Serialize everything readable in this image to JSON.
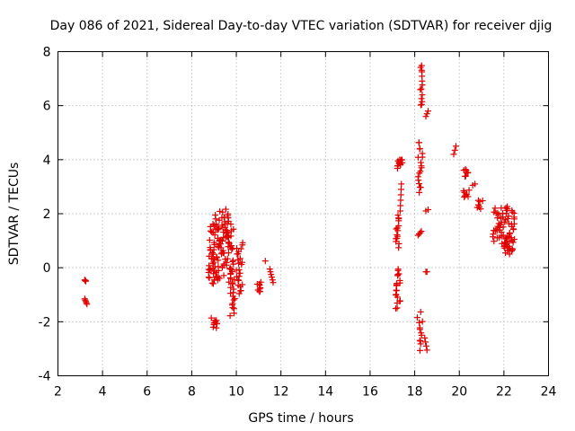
{
  "chart_data": {
    "type": "scatter",
    "title": "Day 086 of 2021, Sidereal Day-to-day VTEC variation (SDTVAR) for receiver djig",
    "xlabel": "GPS time / hours",
    "ylabel": "SDTVAR / TECUs",
    "xlim": [
      2,
      24
    ],
    "ylim": [
      -4,
      8
    ],
    "xticks": [
      "2",
      "4",
      "6",
      "8",
      "10",
      "12",
      "14",
      "16",
      "18",
      "20",
      "22",
      "24"
    ],
    "yticks": [
      "-4",
      "-2",
      "0",
      "2",
      "4",
      "6",
      "8"
    ],
    "grid": true,
    "marker": "plus",
    "color": "#e00000",
    "clusters": [
      {
        "x": [
          3.2,
          3.25
        ],
        "y": [
          -0.45,
          -0.5
        ],
        "n": 4
      },
      {
        "x": [
          3.2,
          3.3
        ],
        "y": [
          -1.15,
          -1.35
        ],
        "n": 5
      },
      {
        "x": [
          8.8,
          9.2
        ],
        "y": [
          -1.85,
          -2.2
        ],
        "n": 10
      },
      {
        "x": [
          8.75,
          9.8
        ],
        "y": [
          -0.55,
          1.6
        ],
        "n": 90
      },
      {
        "x": [
          9.0,
          9.9
        ],
        "y": [
          0.6,
          2.15
        ],
        "n": 40
      },
      {
        "x": [
          9.7,
          9.95
        ],
        "y": [
          -1.75,
          0.3
        ],
        "n": 25
      },
      {
        "x": [
          10.0,
          10.3
        ],
        "y": [
          -0.95,
          0.9
        ],
        "n": 25
      },
      {
        "x": [
          10.85,
          11.15
        ],
        "y": [
          -0.55,
          -0.95
        ],
        "n": 10
      },
      {
        "x": [
          11.3,
          11.35
        ],
        "y": [
          0.25,
          0.25
        ],
        "n": 1
      },
      {
        "x": [
          11.5,
          11.65
        ],
        "y": [
          -0.05,
          -0.55
        ],
        "n": 6
      },
      {
        "x": [
          17.15,
          17.3
        ],
        "y": [
          0.8,
          1.9
        ],
        "n": 15
      },
      {
        "x": [
          17.15,
          17.35
        ],
        "y": [
          -0.05,
          -1.5
        ],
        "n": 20
      },
      {
        "x": [
          17.2,
          17.45
        ],
        "y": [
          3.75,
          4.0
        ],
        "n": 12
      },
      {
        "x": [
          17.35,
          17.4
        ],
        "y": [
          2.1,
          3.1
        ],
        "n": 6
      },
      {
        "x": [
          18.1,
          18.35
        ],
        "y": [
          -3.0,
          -1.7
        ],
        "n": 12
      },
      {
        "x": [
          18.15,
          18.3
        ],
        "y": [
          1.2,
          1.35
        ],
        "n": 4
      },
      {
        "x": [
          18.15,
          18.35
        ],
        "y": [
          2.8,
          4.7
        ],
        "n": 18
      },
      {
        "x": [
          18.25,
          18.35
        ],
        "y": [
          5.95,
          7.55
        ],
        "n": 14
      },
      {
        "x": [
          18.5,
          18.55
        ],
        "y": [
          -0.15,
          -0.15
        ],
        "n": 2
      },
      {
        "x": [
          18.5,
          18.6
        ],
        "y": [
          2.1,
          2.15
        ],
        "n": 2
      },
      {
        "x": [
          18.5,
          18.6
        ],
        "y": [
          5.6,
          5.8
        ],
        "n": 3
      },
      {
        "x": [
          18.45,
          18.55
        ],
        "y": [
          -2.6,
          -3.05
        ],
        "n": 4
      },
      {
        "x": [
          19.75,
          19.85
        ],
        "y": [
          4.2,
          4.5
        ],
        "n": 3
      },
      {
        "x": [
          20.2,
          20.4
        ],
        "y": [
          3.4,
          3.6
        ],
        "n": 8
      },
      {
        "x": [
          20.15,
          20.45
        ],
        "y": [
          2.6,
          2.9
        ],
        "n": 8
      },
      {
        "x": [
          20.6,
          20.7
        ],
        "y": [
          3.05,
          3.1
        ],
        "n": 2
      },
      {
        "x": [
          20.6,
          21.05
        ],
        "y": [
          2.2,
          2.5
        ],
        "n": 8
      },
      {
        "x": [
          21.5,
          22.5
        ],
        "y": [
          0.9,
          2.25
        ],
        "n": 60
      },
      {
        "x": [
          21.9,
          22.4
        ],
        "y": [
          0.5,
          1.05
        ],
        "n": 20
      }
    ]
  }
}
